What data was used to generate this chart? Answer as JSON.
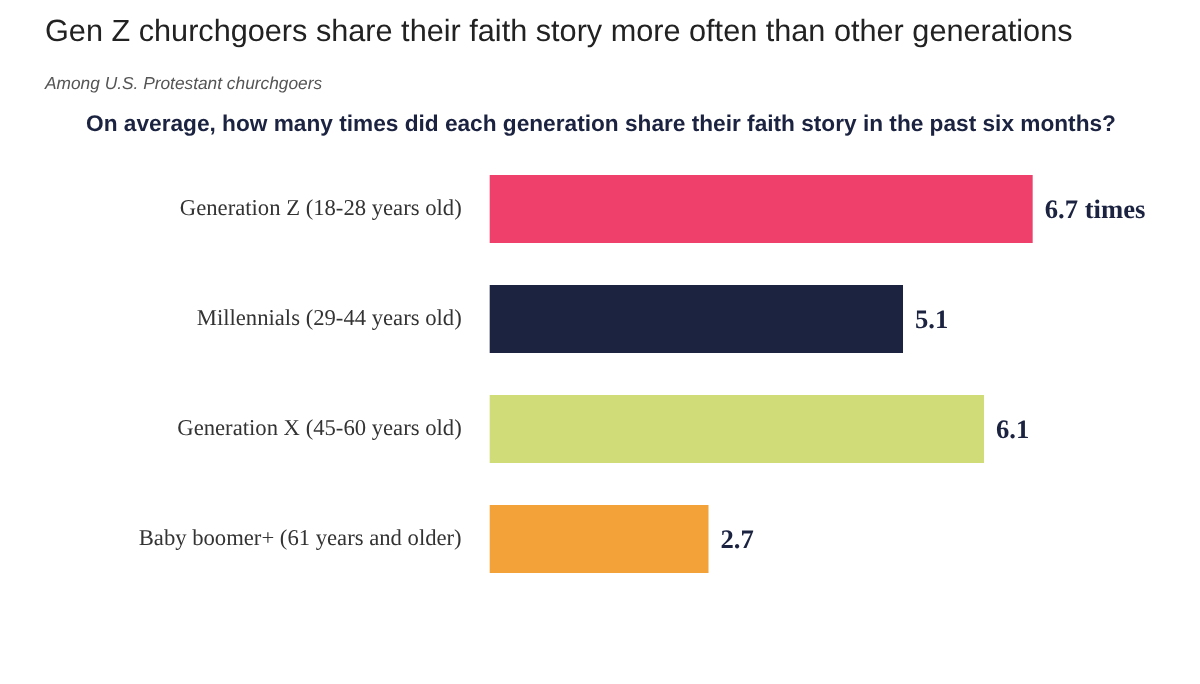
{
  "chart_data": {
    "type": "bar",
    "orientation": "horizontal",
    "title": "Gen Z churchgoers share their faith story more often than other generations",
    "subtitle": "Among U.S. Protestant churchgoers",
    "annotations": [
      "On average, how many times did each generation share their faith story in the past six months?"
    ],
    "categories": [
      "Generation Z (18-28 years old)",
      "Millennials (29-44 years old)",
      "Generation X (45-60 years old)",
      "Baby boomer+ (61 years and older)"
    ],
    "values": [
      6.7,
      5.1,
      6.1,
      2.7
    ],
    "colors": [
      "#ef3f6b",
      "#1b2340",
      "#cfdc78",
      "#f3a23a"
    ],
    "value_labels": [
      "6.7 times",
      "5.1",
      "6.1",
      "2.7"
    ],
    "grid": false
  }
}
